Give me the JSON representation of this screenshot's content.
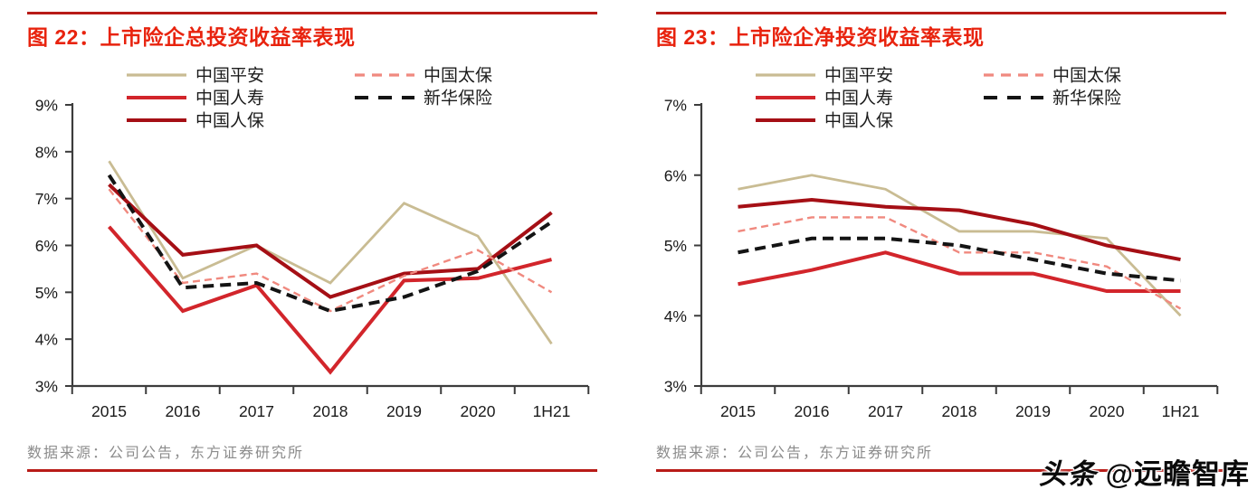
{
  "page": {
    "watermark_brand": "头条",
    "watermark_handle": "@远瞻智库"
  },
  "colors": {
    "title_red": "#e8230e",
    "rule_red": "#b81b17",
    "axis": "#3c3c3c",
    "tick_label": "#1a1a1a",
    "legend_label": "#1c1c1c",
    "source_gray": "#8c8c8c",
    "watermark_black": "#0a0a0a",
    "pingan_tan": "#c9bc93",
    "renshou_red": "#d2252b",
    "renbao_darkred": "#a50f15",
    "taibao_salmon": "#f0897f",
    "xinhua_black": "#141414"
  },
  "chart_data": [
    {
      "type": "line",
      "title": "图 22：上市险企总投资收益率表现",
      "source": "数据来源：公司公告，东方证券研究所",
      "categories": [
        "2015",
        "2016",
        "2017",
        "2018",
        "2019",
        "2020",
        "1H21"
      ],
      "xlabel": "",
      "ylabel": "",
      "ylim": [
        3,
        9
      ],
      "ytick_step": 1,
      "ytick_suffix": "%",
      "grid": false,
      "legend_position": "top",
      "series": [
        {
          "name": "中国平安",
          "color": "#c9bc93",
          "style": "solid",
          "width": 2.8,
          "values": [
            7.8,
            5.3,
            6.0,
            5.2,
            6.9,
            6.2,
            3.9
          ]
        },
        {
          "name": "中国人寿",
          "color": "#d2252b",
          "style": "solid",
          "width": 4,
          "values": [
            6.4,
            4.6,
            5.15,
            3.3,
            5.25,
            5.3,
            5.7
          ]
        },
        {
          "name": "中国人保",
          "color": "#a50f15",
          "style": "solid",
          "width": 4,
          "values": [
            7.3,
            5.8,
            6.0,
            4.9,
            5.4,
            5.5,
            6.7
          ]
        },
        {
          "name": "中国太保",
          "color": "#f0897f",
          "style": "dashed",
          "width": 2.4,
          "values": [
            7.2,
            5.2,
            5.4,
            4.6,
            5.35,
            5.9,
            5.0
          ]
        },
        {
          "name": "新华保险",
          "color": "#141414",
          "style": "dashed",
          "width": 4,
          "values": [
            7.5,
            5.1,
            5.2,
            4.6,
            4.9,
            5.45,
            6.5
          ]
        }
      ]
    },
    {
      "type": "line",
      "title": "图 23：上市险企净投资收益率表现",
      "source": "数据来源：公司公告，东方证券研究所",
      "categories": [
        "2015",
        "2016",
        "2017",
        "2018",
        "2019",
        "2020",
        "1H21"
      ],
      "xlabel": "",
      "ylabel": "",
      "ylim": [
        3,
        7
      ],
      "ytick_step": 1,
      "ytick_suffix": "%",
      "grid": false,
      "legend_position": "top",
      "series": [
        {
          "name": "中国平安",
          "color": "#c9bc93",
          "style": "solid",
          "width": 2.8,
          "values": [
            5.8,
            6.0,
            5.8,
            5.2,
            5.2,
            5.1,
            4.0
          ]
        },
        {
          "name": "中国人寿",
          "color": "#d2252b",
          "style": "solid",
          "width": 4,
          "values": [
            4.45,
            4.65,
            4.9,
            4.6,
            4.6,
            4.35,
            4.35
          ]
        },
        {
          "name": "中国人保",
          "color": "#a50f15",
          "style": "solid",
          "width": 4,
          "values": [
            5.55,
            5.65,
            5.55,
            5.5,
            5.3,
            5.0,
            4.8
          ]
        },
        {
          "name": "中国太保",
          "color": "#f0897f",
          "style": "dashed",
          "width": 2.4,
          "values": [
            5.2,
            5.4,
            5.4,
            4.9,
            4.9,
            4.7,
            4.1
          ]
        },
        {
          "name": "新华保险",
          "color": "#141414",
          "style": "dashed",
          "width": 4,
          "values": [
            4.9,
            5.1,
            5.1,
            5.0,
            4.8,
            4.6,
            4.5
          ]
        }
      ]
    }
  ]
}
